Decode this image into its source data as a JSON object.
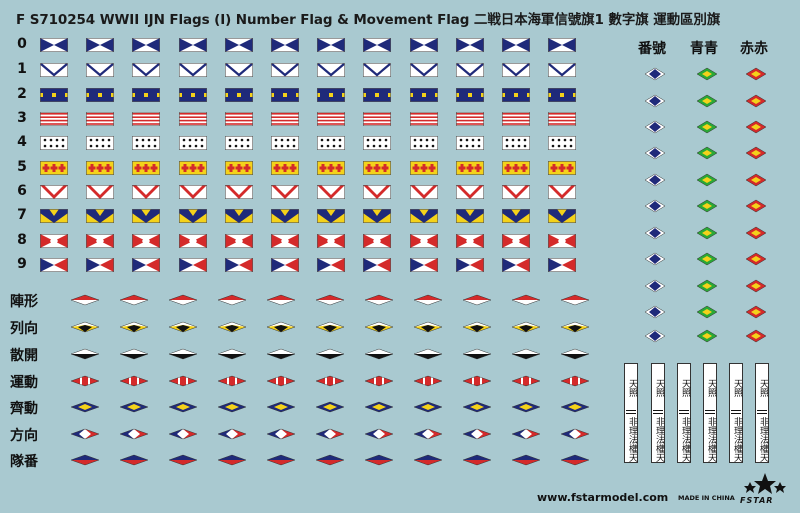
{
  "title": "F S710254 WWII IJN Flags (I) Number Flag & Movement Flag 二戦日本海軍信號旗1 數字旗 運動區別旗",
  "number_rows": [
    "0",
    "1",
    "2",
    "3",
    "4",
    "5",
    "6",
    "7",
    "8",
    "9"
  ],
  "movement_rows": [
    "陣形",
    "列向",
    "散開",
    "運動",
    "齊動",
    "方向",
    "隊番"
  ],
  "column_headers": [
    "番號",
    "青青",
    "赤赤"
  ],
  "strip_text_top": "天照",
  "strip_text_bottom": "非理法權天",
  "website": "www.fstarmodel.com",
  "made_in": "MADE IN CHINA",
  "brand": "FSTAR",
  "colors": {
    "background": "#a9c9d0",
    "navy": "#1f2a7a",
    "red": "#d42a2a",
    "yellow": "#f4d21a",
    "green": "#2aa836",
    "black": "#111111",
    "white": "#ffffff"
  }
}
